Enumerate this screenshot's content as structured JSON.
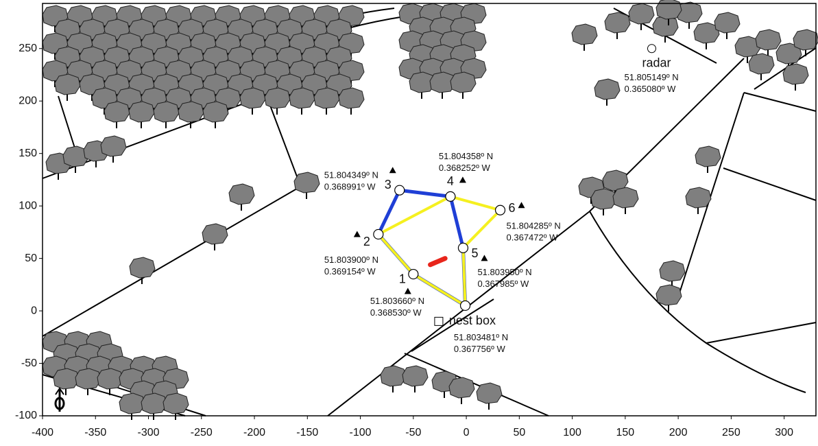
{
  "chart_data": {
    "type": "map",
    "xlim": [
      -400,
      330
    ],
    "ylim": [
      -100,
      293
    ],
    "xticks": [
      -400,
      -350,
      -300,
      -250,
      -200,
      -150,
      -100,
      -50,
      0,
      50,
      100,
      150,
      200,
      250,
      300
    ],
    "yticks": [
      -100,
      -50,
      0,
      50,
      100,
      150,
      200,
      250
    ],
    "points": [
      {
        "label": "1",
        "x": -50,
        "y": 35,
        "lat": "51.803660º N",
        "lon": "0.368530º W"
      },
      {
        "label": "2",
        "x": -83,
        "y": 73,
        "lat": "51.803900º N",
        "lon": "0.369154º W"
      },
      {
        "label": "3",
        "x": -63,
        "y": 115,
        "lat": "51.804349º N",
        "lon": "0.368991º W"
      },
      {
        "label": "4",
        "x": -15,
        "y": 109,
        "lat": "51.804358º N",
        "lon": "0.368252º W"
      },
      {
        "label": "5",
        "x": -3,
        "y": 60,
        "lat": "51.803950º N",
        "lon": "0.367985º W"
      },
      {
        "label": "6",
        "x": 32,
        "y": 96,
        "lat": "51.804285º N",
        "lon": "0.367472º W"
      },
      {
        "x": -1,
        "y": 5
      }
    ],
    "nest_box": {
      "label": "nest box",
      "x": -26,
      "y": -10,
      "lat": "51.803481º N",
      "lon": "0.367756º W"
    },
    "radar": {
      "label": "radar",
      "x": 175,
      "y": 250,
      "lat": "51.805149º N",
      "lon": "0.365080º W"
    },
    "series": [
      {
        "color": "#1f3fd6",
        "x": [
          -1,
          -50,
          -83,
          -63,
          -15,
          -3,
          -1
        ],
        "y": [
          5,
          35,
          73,
          115,
          109,
          60,
          5
        ]
      },
      {
        "color": "#f5f020",
        "x": [
          -1,
          -50,
          -83,
          -15,
          32,
          -3,
          -1
        ],
        "y": [
          5,
          35,
          73,
          109,
          96,
          60,
          5
        ]
      }
    ],
    "bird": {
      "color": "#e8251b",
      "x": [
        -34,
        -20
      ],
      "y": [
        44,
        50
      ]
    }
  }
}
